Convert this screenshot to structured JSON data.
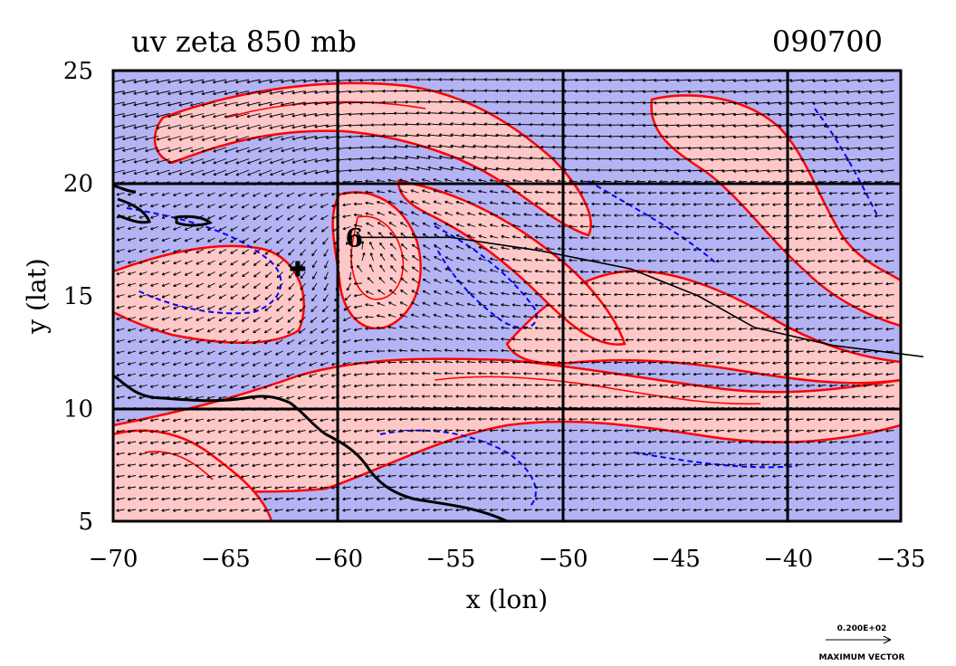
{
  "chart_data": {
    "type": "heatmap",
    "title": "uv zeta 850 mb",
    "timestamp": "090700",
    "xlabel": "x (lon)",
    "ylabel": "y (lat)",
    "xlim": [
      -70,
      -35
    ],
    "ylim": [
      5,
      25
    ],
    "xticks": [
      -70,
      -65,
      -60,
      -55,
      -50,
      -45,
      -40,
      -35
    ],
    "xtick_labels": [
      "−70",
      "−65",
      "−60",
      "−55",
      "−50",
      "−45",
      "−40",
      "−35"
    ],
    "yticks": [
      5,
      10,
      15,
      20,
      25
    ],
    "ytick_labels": [
      "5",
      "10",
      "15",
      "20",
      "25"
    ],
    "grid_x": [
      -60,
      -50,
      -40
    ],
    "grid_y": [
      10,
      20
    ],
    "colors": {
      "positive_fill": "#ffc8c8",
      "negative_fill": "#b4b4f5",
      "positive_contour": "#ff0000",
      "negative_contour": "#0000ff",
      "coast": "#000000"
    },
    "track": [
      {
        "lon": -59.0,
        "lat": 17.6
      },
      {
        "lon": -55.0,
        "lat": 17.6
      },
      {
        "lon": -51.0,
        "lat": 17.0
      },
      {
        "lon": -47.0,
        "lat": 16.2
      },
      {
        "lon": -44.0,
        "lat": 15.0
      },
      {
        "lon": -41.5,
        "lat": 13.6
      },
      {
        "lon": -38.0,
        "lat": 12.8
      },
      {
        "lon": -34.0,
        "lat": 12.3
      }
    ],
    "storm_symbol": {
      "lon": -59.2,
      "lat": 17.6
    },
    "cross_marker": {
      "lon": -61.8,
      "lat": 16.2
    },
    "reference_vector": {
      "value": "0.200E+02",
      "label": "MAXIMUM VECTOR"
    }
  }
}
